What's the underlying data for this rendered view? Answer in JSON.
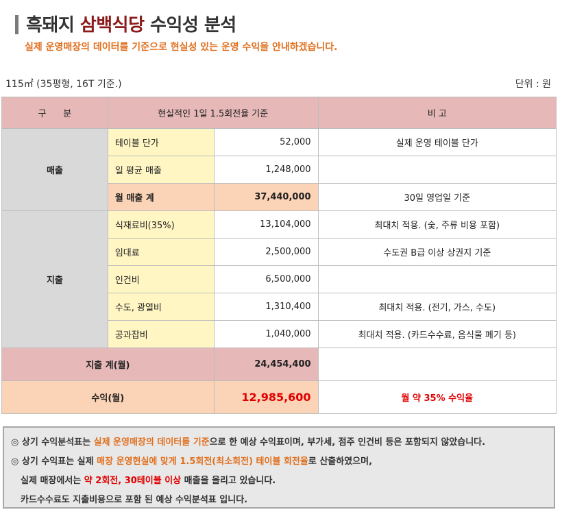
{
  "title": {
    "prefix": "흑돼지 ",
    "accent": "삼백식당",
    "suffix": " 수익성 분석"
  },
  "subtitle": "실제 운영매장의 데이터를 기준으로 현실성 있는 운영 수익을 안내하겠습니다.",
  "size_note": "115㎡ (35평형, 16T 기준.)",
  "unit_note": "단위 : 원",
  "table": {
    "headers": [
      "구      분",
      "현실적인 1일 1.5회전율 기준",
      "비 고"
    ],
    "sales": {
      "category": "매출",
      "rows": [
        {
          "item": "테이블 단가",
          "value": "52,000",
          "note": "실제 운영 테이블 단가"
        },
        {
          "item": "일 평균 매출",
          "value": "1,248,000",
          "note": ""
        },
        {
          "item": "월 매출 계",
          "value": "37,440,000",
          "note": "30일 영업일 기준"
        }
      ]
    },
    "expenses": {
      "category": "지출",
      "rows": [
        {
          "item": "식재료비(35%)",
          "value": "13,104,000",
          "note": "최대치 적용. (숯, 주류 비용 포함)"
        },
        {
          "item": "임대료",
          "value": "2,500,000",
          "note": "수도권 B급 이상 상권지 기준"
        },
        {
          "item": "인건비",
          "value": "6,500,000",
          "note": ""
        },
        {
          "item": "수도, 광열비",
          "value": "1,310,400",
          "note": "최대치 적용. (전기, 가스, 수도)"
        },
        {
          "item": "공과잡비",
          "value": "1,040,000",
          "note": "최대치 적용. (카드수수료, 음식물 폐기 등)"
        }
      ]
    },
    "expense_total": {
      "label": "지출 계(월)",
      "value": "24,454,400",
      "note": ""
    },
    "profit": {
      "label": "수익(월)",
      "value": "12,985,600",
      "note": "월 약 35% 수익율"
    }
  },
  "notes": {
    "line1": {
      "a": "◎ 상기 수익분석표는 ",
      "b": "실제 운영매장의 데이터를 기준",
      "c": "으로 한 예상 수익표이며, 부가세, 점주 인건비 등은 포함되지 않았습니다."
    },
    "line2": {
      "a": "◎ 상기 수익표는 실제 ",
      "b": "매장 운영현실에 맞게 1.5회전(최소회전) 테이블 회전율",
      "c": "로 산출하였으며,"
    },
    "line3": {
      "a": "실제 매장에서는 ",
      "b": "약 2회전, 30테이블 이상",
      "c": " 매출을 올리고 있습니다."
    },
    "line4": "카드수수료도 지출비용으로 포함 된 예상 수익분석표 입니다."
  }
}
